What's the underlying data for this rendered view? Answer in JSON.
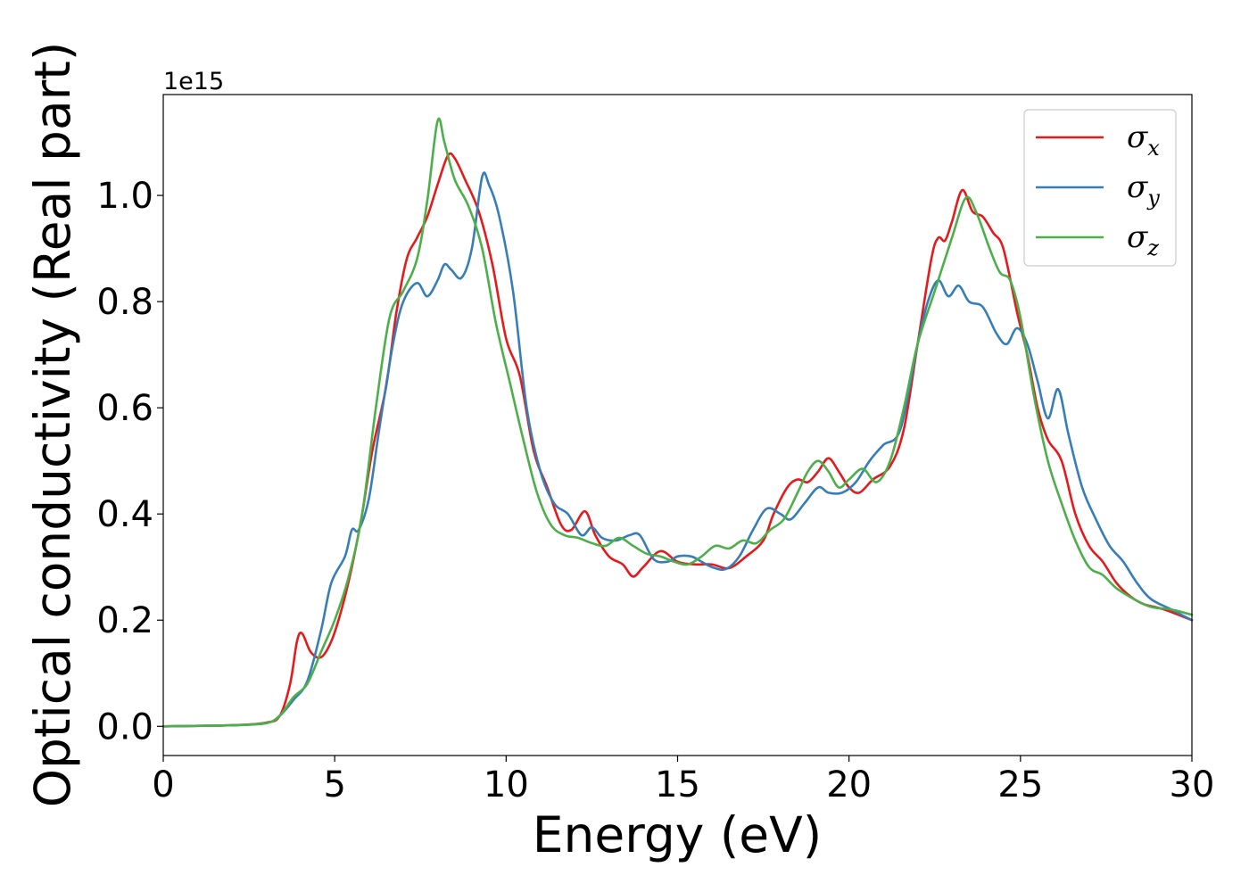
{
  "chart_data": {
    "type": "line",
    "title": "",
    "xlabel": "Energy (eV)",
    "ylabel": "Optical conductivity (Real part)",
    "y_offset_label": "1e15",
    "xlim": [
      0,
      30
    ],
    "ylim": [
      -0.055,
      1.19
    ],
    "xticks": [
      0,
      5,
      10,
      15,
      20,
      25,
      30
    ],
    "yticks": [
      0.0,
      0.2,
      0.4,
      0.6,
      0.8,
      1.0
    ],
    "xtick_labels": [
      "0",
      "5",
      "10",
      "15",
      "20",
      "25",
      "30"
    ],
    "ytick_labels": [
      "0.0",
      "0.2",
      "0.4",
      "0.6",
      "0.8",
      "1.0"
    ],
    "grid": false,
    "legend_position": "upper right",
    "series": [
      {
        "name": "σx",
        "symbol": "σ",
        "subscript": "x",
        "color": "#e41a1c",
        "points": [
          [
            0,
            0
          ],
          [
            2,
            0.002
          ],
          [
            3,
            0.007
          ],
          [
            3.4,
            0.02
          ],
          [
            3.7,
            0.08
          ],
          [
            3.9,
            0.16
          ],
          [
            4.05,
            0.175
          ],
          [
            4.3,
            0.14
          ],
          [
            4.6,
            0.13
          ],
          [
            4.9,
            0.16
          ],
          [
            5.2,
            0.22
          ],
          [
            5.5,
            0.3
          ],
          [
            5.8,
            0.4
          ],
          [
            6.1,
            0.52
          ],
          [
            6.5,
            0.64
          ],
          [
            6.8,
            0.78
          ],
          [
            7.1,
            0.88
          ],
          [
            7.4,
            0.92
          ],
          [
            7.7,
            0.96
          ],
          [
            8.0,
            1.02
          ],
          [
            8.3,
            1.075
          ],
          [
            8.5,
            1.07
          ],
          [
            8.8,
            1.03
          ],
          [
            9.2,
            0.97
          ],
          [
            9.6,
            0.87
          ],
          [
            10.0,
            0.73
          ],
          [
            10.4,
            0.66
          ],
          [
            10.8,
            0.52
          ],
          [
            11.2,
            0.45
          ],
          [
            11.6,
            0.38
          ],
          [
            11.9,
            0.37
          ],
          [
            12.3,
            0.405
          ],
          [
            12.6,
            0.36
          ],
          [
            13.0,
            0.32
          ],
          [
            13.4,
            0.305
          ],
          [
            13.7,
            0.282
          ],
          [
            14.0,
            0.3
          ],
          [
            14.5,
            0.33
          ],
          [
            15.0,
            0.31
          ],
          [
            15.5,
            0.305
          ],
          [
            16.0,
            0.305
          ],
          [
            16.5,
            0.298
          ],
          [
            17.0,
            0.32
          ],
          [
            17.5,
            0.35
          ],
          [
            17.8,
            0.4
          ],
          [
            18.2,
            0.45
          ],
          [
            18.5,
            0.465
          ],
          [
            18.8,
            0.46
          ],
          [
            19.1,
            0.48
          ],
          [
            19.4,
            0.505
          ],
          [
            19.7,
            0.48
          ],
          [
            20.0,
            0.45
          ],
          [
            20.3,
            0.44
          ],
          [
            20.7,
            0.465
          ],
          [
            21.2,
            0.49
          ],
          [
            21.6,
            0.56
          ],
          [
            22.0,
            0.72
          ],
          [
            22.4,
            0.88
          ],
          [
            22.6,
            0.92
          ],
          [
            22.8,
            0.915
          ],
          [
            23.0,
            0.95
          ],
          [
            23.3,
            1.01
          ],
          [
            23.6,
            0.97
          ],
          [
            23.9,
            0.96
          ],
          [
            24.2,
            0.93
          ],
          [
            24.5,
            0.9
          ],
          [
            24.9,
            0.78
          ],
          [
            25.2,
            0.7
          ],
          [
            25.5,
            0.6
          ],
          [
            25.8,
            0.54
          ],
          [
            26.2,
            0.5
          ],
          [
            26.6,
            0.4
          ],
          [
            27.0,
            0.34
          ],
          [
            27.4,
            0.31
          ],
          [
            27.8,
            0.27
          ],
          [
            28.2,
            0.245
          ],
          [
            28.6,
            0.23
          ],
          [
            29.2,
            0.22
          ],
          [
            30,
            0.2
          ]
        ]
      },
      {
        "name": "σy",
        "symbol": "σ",
        "subscript": "y",
        "color": "#377eb8",
        "points": [
          [
            0,
            0
          ],
          [
            2,
            0.002
          ],
          [
            3,
            0.006
          ],
          [
            3.4,
            0.02
          ],
          [
            3.8,
            0.05
          ],
          [
            4.2,
            0.085
          ],
          [
            4.6,
            0.18
          ],
          [
            4.9,
            0.27
          ],
          [
            5.3,
            0.32
          ],
          [
            5.5,
            0.37
          ],
          [
            5.7,
            0.37
          ],
          [
            6.0,
            0.43
          ],
          [
            6.3,
            0.56
          ],
          [
            6.7,
            0.72
          ],
          [
            7.0,
            0.8
          ],
          [
            7.4,
            0.835
          ],
          [
            7.7,
            0.81
          ],
          [
            8.0,
            0.84
          ],
          [
            8.2,
            0.87
          ],
          [
            8.4,
            0.86
          ],
          [
            8.7,
            0.845
          ],
          [
            9.0,
            0.9
          ],
          [
            9.3,
            1.035
          ],
          [
            9.5,
            1.02
          ],
          [
            9.8,
            0.96
          ],
          [
            10.2,
            0.82
          ],
          [
            10.6,
            0.6
          ],
          [
            11.0,
            0.48
          ],
          [
            11.4,
            0.42
          ],
          [
            11.8,
            0.4
          ],
          [
            12.2,
            0.36
          ],
          [
            12.5,
            0.375
          ],
          [
            12.8,
            0.355
          ],
          [
            13.2,
            0.35
          ],
          [
            13.6,
            0.36
          ],
          [
            13.9,
            0.36
          ],
          [
            14.3,
            0.315
          ],
          [
            14.7,
            0.31
          ],
          [
            15.0,
            0.32
          ],
          [
            15.4,
            0.32
          ],
          [
            15.7,
            0.31
          ],
          [
            16.0,
            0.3
          ],
          [
            16.4,
            0.296
          ],
          [
            16.8,
            0.32
          ],
          [
            17.2,
            0.37
          ],
          [
            17.6,
            0.41
          ],
          [
            18.0,
            0.4
          ],
          [
            18.3,
            0.39
          ],
          [
            18.7,
            0.42
          ],
          [
            19.1,
            0.45
          ],
          [
            19.4,
            0.44
          ],
          [
            19.8,
            0.44
          ],
          [
            20.2,
            0.46
          ],
          [
            20.6,
            0.5
          ],
          [
            21.0,
            0.53
          ],
          [
            21.5,
            0.56
          ],
          [
            22.0,
            0.72
          ],
          [
            22.3,
            0.8
          ],
          [
            22.6,
            0.84
          ],
          [
            22.9,
            0.81
          ],
          [
            23.2,
            0.83
          ],
          [
            23.5,
            0.8
          ],
          [
            23.9,
            0.79
          ],
          [
            24.3,
            0.74
          ],
          [
            24.6,
            0.72
          ],
          [
            24.9,
            0.75
          ],
          [
            25.2,
            0.72
          ],
          [
            25.5,
            0.65
          ],
          [
            25.8,
            0.58
          ],
          [
            26.1,
            0.635
          ],
          [
            26.4,
            0.55
          ],
          [
            26.8,
            0.45
          ],
          [
            27.2,
            0.39
          ],
          [
            27.6,
            0.34
          ],
          [
            28.0,
            0.31
          ],
          [
            28.4,
            0.27
          ],
          [
            28.8,
            0.24
          ],
          [
            29.4,
            0.22
          ],
          [
            30,
            0.2
          ]
        ]
      },
      {
        "name": "σz",
        "symbol": "σ",
        "subscript": "z",
        "color": "#4daf4a",
        "points": [
          [
            0,
            0
          ],
          [
            2,
            0.002
          ],
          [
            3,
            0.006
          ],
          [
            3.4,
            0.02
          ],
          [
            3.8,
            0.055
          ],
          [
            4.2,
            0.08
          ],
          [
            4.6,
            0.14
          ],
          [
            5.0,
            0.2
          ],
          [
            5.4,
            0.28
          ],
          [
            5.8,
            0.4
          ],
          [
            6.2,
            0.6
          ],
          [
            6.6,
            0.77
          ],
          [
            7.0,
            0.82
          ],
          [
            7.4,
            0.88
          ],
          [
            7.7,
            0.99
          ],
          [
            8.0,
            1.14
          ],
          [
            8.2,
            1.1
          ],
          [
            8.5,
            1.03
          ],
          [
            8.9,
            0.98
          ],
          [
            9.3,
            0.9
          ],
          [
            9.7,
            0.76
          ],
          [
            10.1,
            0.65
          ],
          [
            10.5,
            0.54
          ],
          [
            10.9,
            0.44
          ],
          [
            11.3,
            0.38
          ],
          [
            11.7,
            0.36
          ],
          [
            12.1,
            0.355
          ],
          [
            12.5,
            0.345
          ],
          [
            12.9,
            0.34
          ],
          [
            13.3,
            0.355
          ],
          [
            13.7,
            0.34
          ],
          [
            14.1,
            0.325
          ],
          [
            14.5,
            0.32
          ],
          [
            14.9,
            0.31
          ],
          [
            15.3,
            0.305
          ],
          [
            15.7,
            0.32
          ],
          [
            16.1,
            0.34
          ],
          [
            16.5,
            0.335
          ],
          [
            16.9,
            0.35
          ],
          [
            17.3,
            0.345
          ],
          [
            17.7,
            0.37
          ],
          [
            18.1,
            0.39
          ],
          [
            18.5,
            0.44
          ],
          [
            18.8,
            0.48
          ],
          [
            19.1,
            0.5
          ],
          [
            19.4,
            0.48
          ],
          [
            19.7,
            0.45
          ],
          [
            20.0,
            0.465
          ],
          [
            20.4,
            0.485
          ],
          [
            20.8,
            0.46
          ],
          [
            21.2,
            0.5
          ],
          [
            21.6,
            0.6
          ],
          [
            22.0,
            0.72
          ],
          [
            22.5,
            0.82
          ],
          [
            23.0,
            0.92
          ],
          [
            23.4,
            0.995
          ],
          [
            23.7,
            0.97
          ],
          [
            24.1,
            0.9
          ],
          [
            24.4,
            0.855
          ],
          [
            24.7,
            0.84
          ],
          [
            25.0,
            0.77
          ],
          [
            25.4,
            0.62
          ],
          [
            25.8,
            0.5
          ],
          [
            26.2,
            0.42
          ],
          [
            26.6,
            0.35
          ],
          [
            27.0,
            0.3
          ],
          [
            27.4,
            0.285
          ],
          [
            27.8,
            0.26
          ],
          [
            28.3,
            0.24
          ],
          [
            28.8,
            0.225
          ],
          [
            29.4,
            0.22
          ],
          [
            30,
            0.21
          ]
        ]
      }
    ]
  }
}
